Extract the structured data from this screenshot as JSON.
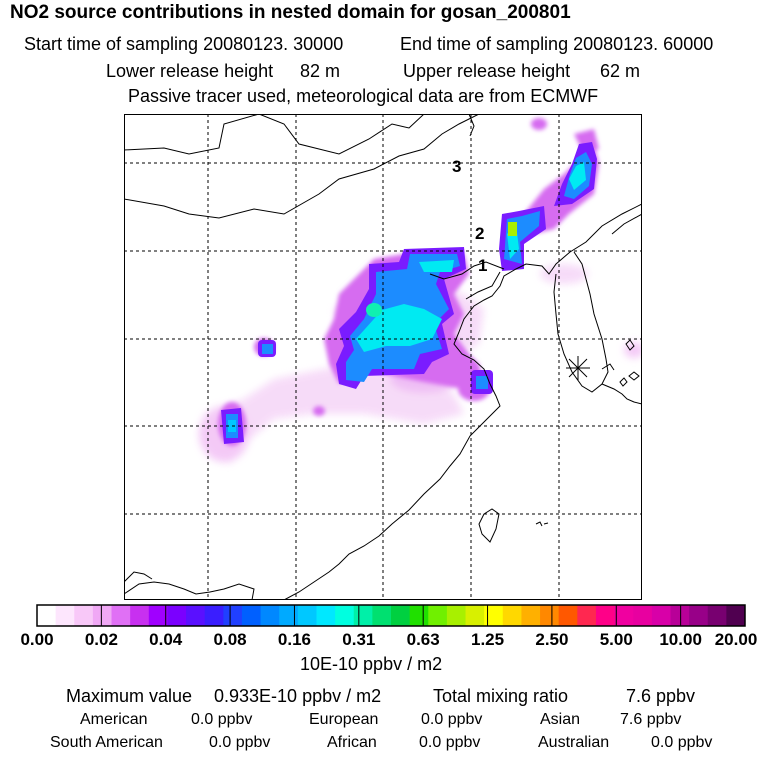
{
  "title": "NO2 source contributions in nested domain for gosan_200801",
  "header": {
    "start_label": "Start time of sampling 20080123. 30000",
    "end_label": "End time of sampling 20080123. 60000",
    "lower_label": "Lower release height",
    "lower_value": "82 m",
    "upper_label": "Upper release height",
    "upper_value": "62 m",
    "info": "Passive tracer used, meteorological data are from ECMWF"
  },
  "map": {
    "markers": [
      "1",
      "2",
      "3"
    ],
    "receptor_icon": "asterisk-receptor-icon"
  },
  "colorbar": {
    "ticks": [
      "0.00",
      "0.02",
      "0.04",
      "0.08",
      "0.16",
      "0.31",
      "0.63",
      "1.25",
      "2.50",
      "5.00",
      "10.00",
      "20.00"
    ],
    "units": "10E-10 ppbv / m2",
    "colors": [
      "#ffffff",
      "#fde6fd",
      "#f8c8f8",
      "#f0a8f5",
      "#e070f5",
      "#c830f0",
      "#a000ff",
      "#7b00ff",
      "#5a10ff",
      "#3a1eff",
      "#2040ff",
      "#0060ff",
      "#0088ff",
      "#00aaff",
      "#00c8ff",
      "#00e8ff",
      "#00ffe0",
      "#00f0a8",
      "#00e070",
      "#00d040",
      "#20e000",
      "#70f000",
      "#a8f000",
      "#d8f000",
      "#ffff00",
      "#ffd800",
      "#ffb000",
      "#ff8800",
      "#ff5800",
      "#ff2850",
      "#ff0088",
      "#f000a0",
      "#e800a0",
      "#d800a8",
      "#b80098",
      "#980088",
      "#780070",
      "#500050"
    ]
  },
  "stats": {
    "max_label": "Maximum value",
    "max_value": "0.933E-10 ppbv / m2",
    "total_label": "Total mixing ratio",
    "total_value": "7.6 ppbv",
    "regions": [
      {
        "name": "American",
        "value": "0.0 ppbv"
      },
      {
        "name": "European",
        "value": "0.0 ppbv"
      },
      {
        "name": "Asian",
        "value": "7.6 ppbv"
      },
      {
        "name": "South American",
        "value": "0.0 ppbv"
      },
      {
        "name": "African",
        "value": "0.0 ppbv"
      },
      {
        "name": "Australian",
        "value": "0.0 ppbv"
      }
    ]
  }
}
